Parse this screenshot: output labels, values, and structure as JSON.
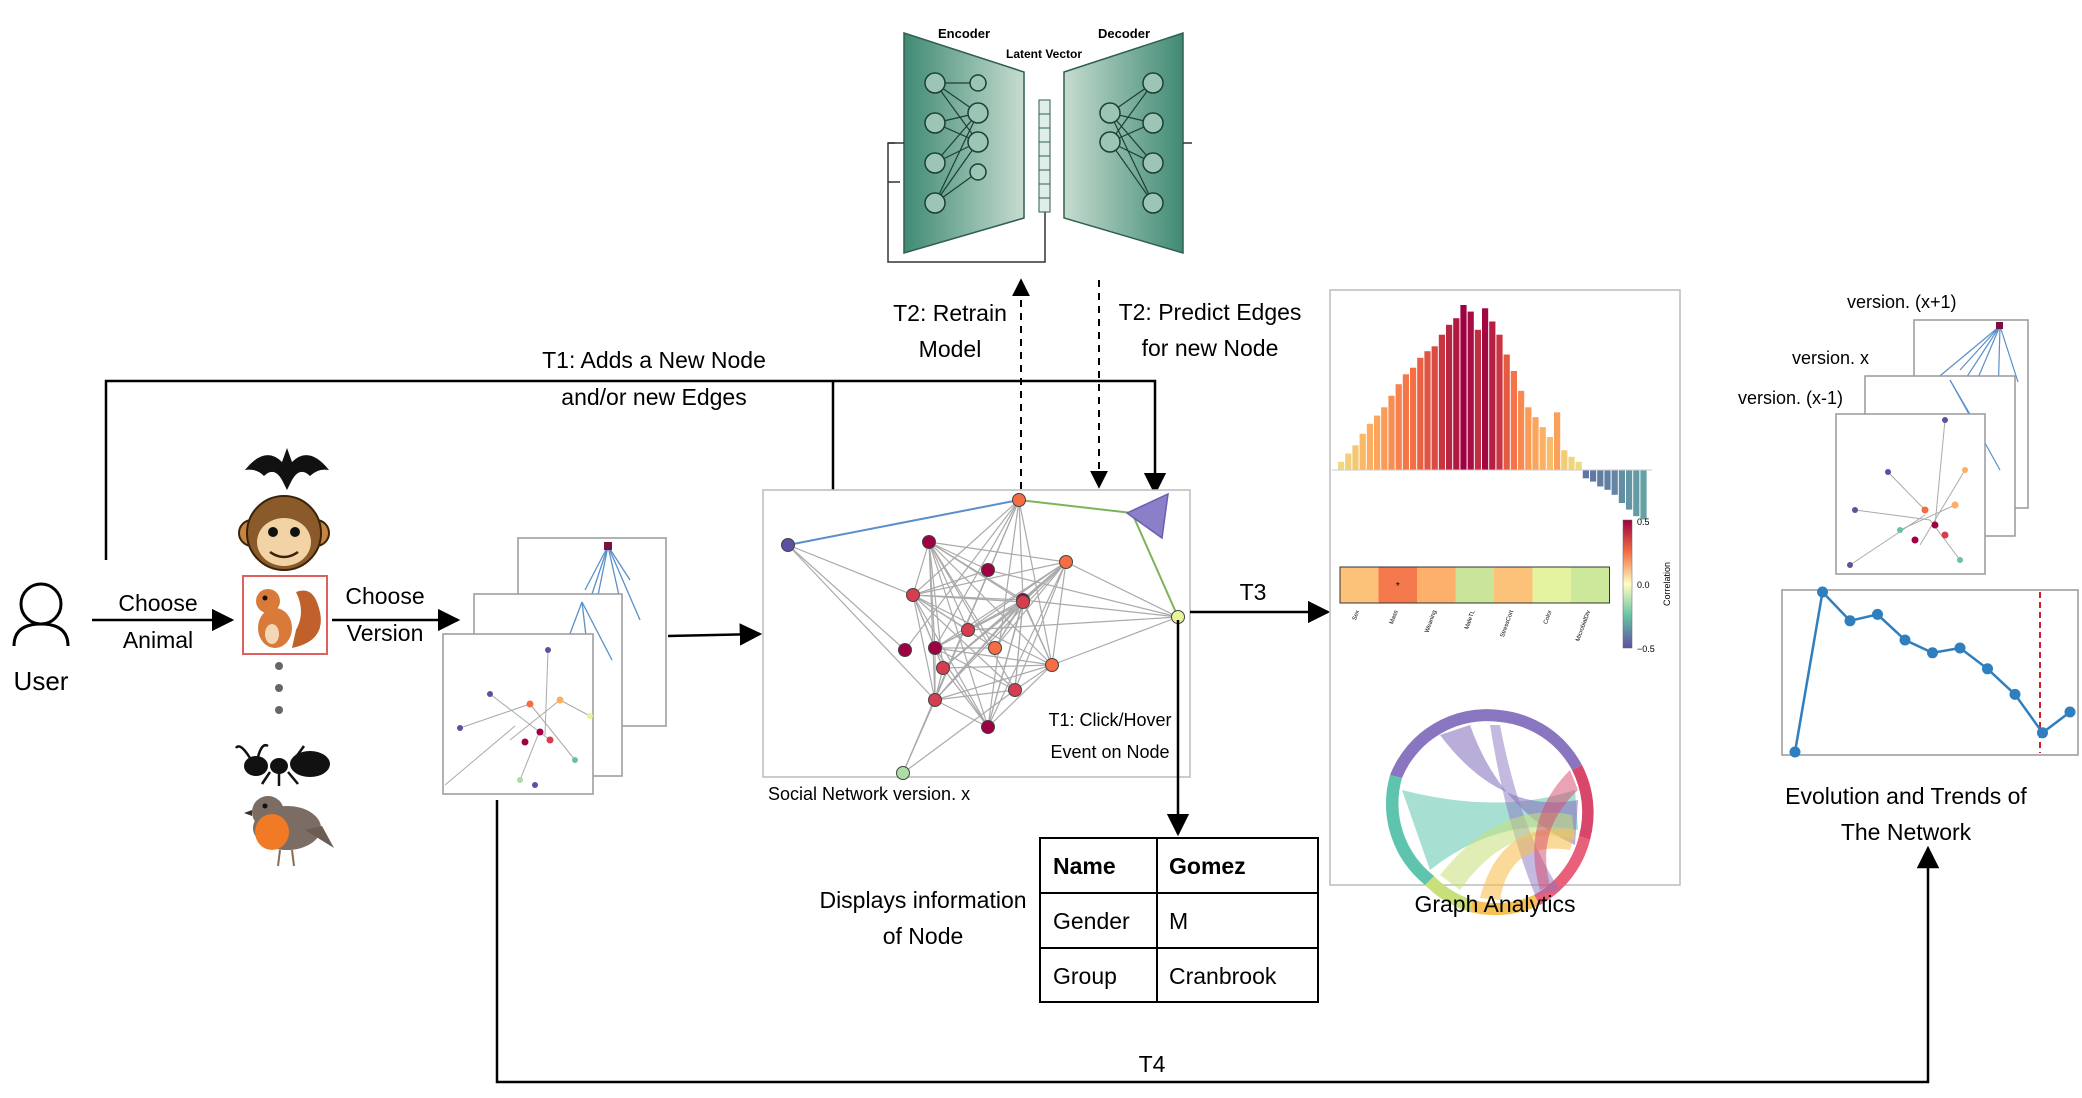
{
  "user": {
    "label": "User"
  },
  "steps": {
    "choose_animal": [
      "Choose",
      "Animal"
    ],
    "choose_version": [
      "Choose",
      "Version"
    ],
    "t1_add": [
      "T1: Adds a New Node",
      "and/or new Edges"
    ],
    "t2_retrain": [
      "T2: Retrain",
      "Model"
    ],
    "t2_predict": [
      "T2: Predict Edges",
      "for new Node"
    ],
    "t1_click": [
      "T1: Click/Hover",
      "Event on Node"
    ],
    "t3": "T3",
    "t4": "T4"
  },
  "autoencoder": {
    "encoder": "Encoder",
    "decoder": "Decoder",
    "latent": "Latent Vector"
  },
  "network": {
    "caption": "Social Network version. x"
  },
  "node_info": {
    "caption": [
      "Displays information",
      "of  Node"
    ],
    "header": [
      "Name",
      "Gomez"
    ],
    "rows": [
      [
        "Gender",
        "M"
      ],
      [
        "Group",
        "Cranbrook"
      ]
    ]
  },
  "analytics": {
    "caption": "Graph Analytics",
    "colorbar_label": "Correlation",
    "colorbar_ticks": [
      "0.5",
      "0.0",
      "−0.5"
    ],
    "heatmap_labels": [
      "Sex",
      "Mass",
      "Weaning",
      "MaleTL",
      "StressCort",
      "Color",
      "MicrobialDiv"
    ],
    "bar_values": [
      0.05,
      0.1,
      0.15,
      0.22,
      0.28,
      0.33,
      0.38,
      0.45,
      0.52,
      0.58,
      0.62,
      0.68,
      0.72,
      0.75,
      0.82,
      0.88,
      0.92,
      1.0,
      0.96,
      0.85,
      0.98,
      0.9,
      0.82,
      0.7,
      0.6,
      0.48,
      0.38,
      0.32,
      0.26,
      0.2,
      0.35,
      0.12,
      0.08,
      0.05,
      -0.05,
      -0.07,
      -0.1,
      -0.12,
      -0.15,
      -0.2,
      -0.24,
      -0.28,
      -0.3
    ]
  },
  "versions": {
    "labels": [
      "version. (x+1)",
      "version. x",
      "version. (x-1)"
    ]
  },
  "evolution": {
    "caption": [
      "Evolution and Trends of",
      "The Network"
    ],
    "values": [
      0.0,
      1.0,
      0.82,
      0.86,
      0.7,
      0.62,
      0.65,
      0.52,
      0.36,
      0.12,
      0.25
    ]
  },
  "colors": {
    "accent_blue": "#5b8fc9",
    "ae_fill": "#5f9c8a",
    "hist_line": "#d11f2f"
  }
}
